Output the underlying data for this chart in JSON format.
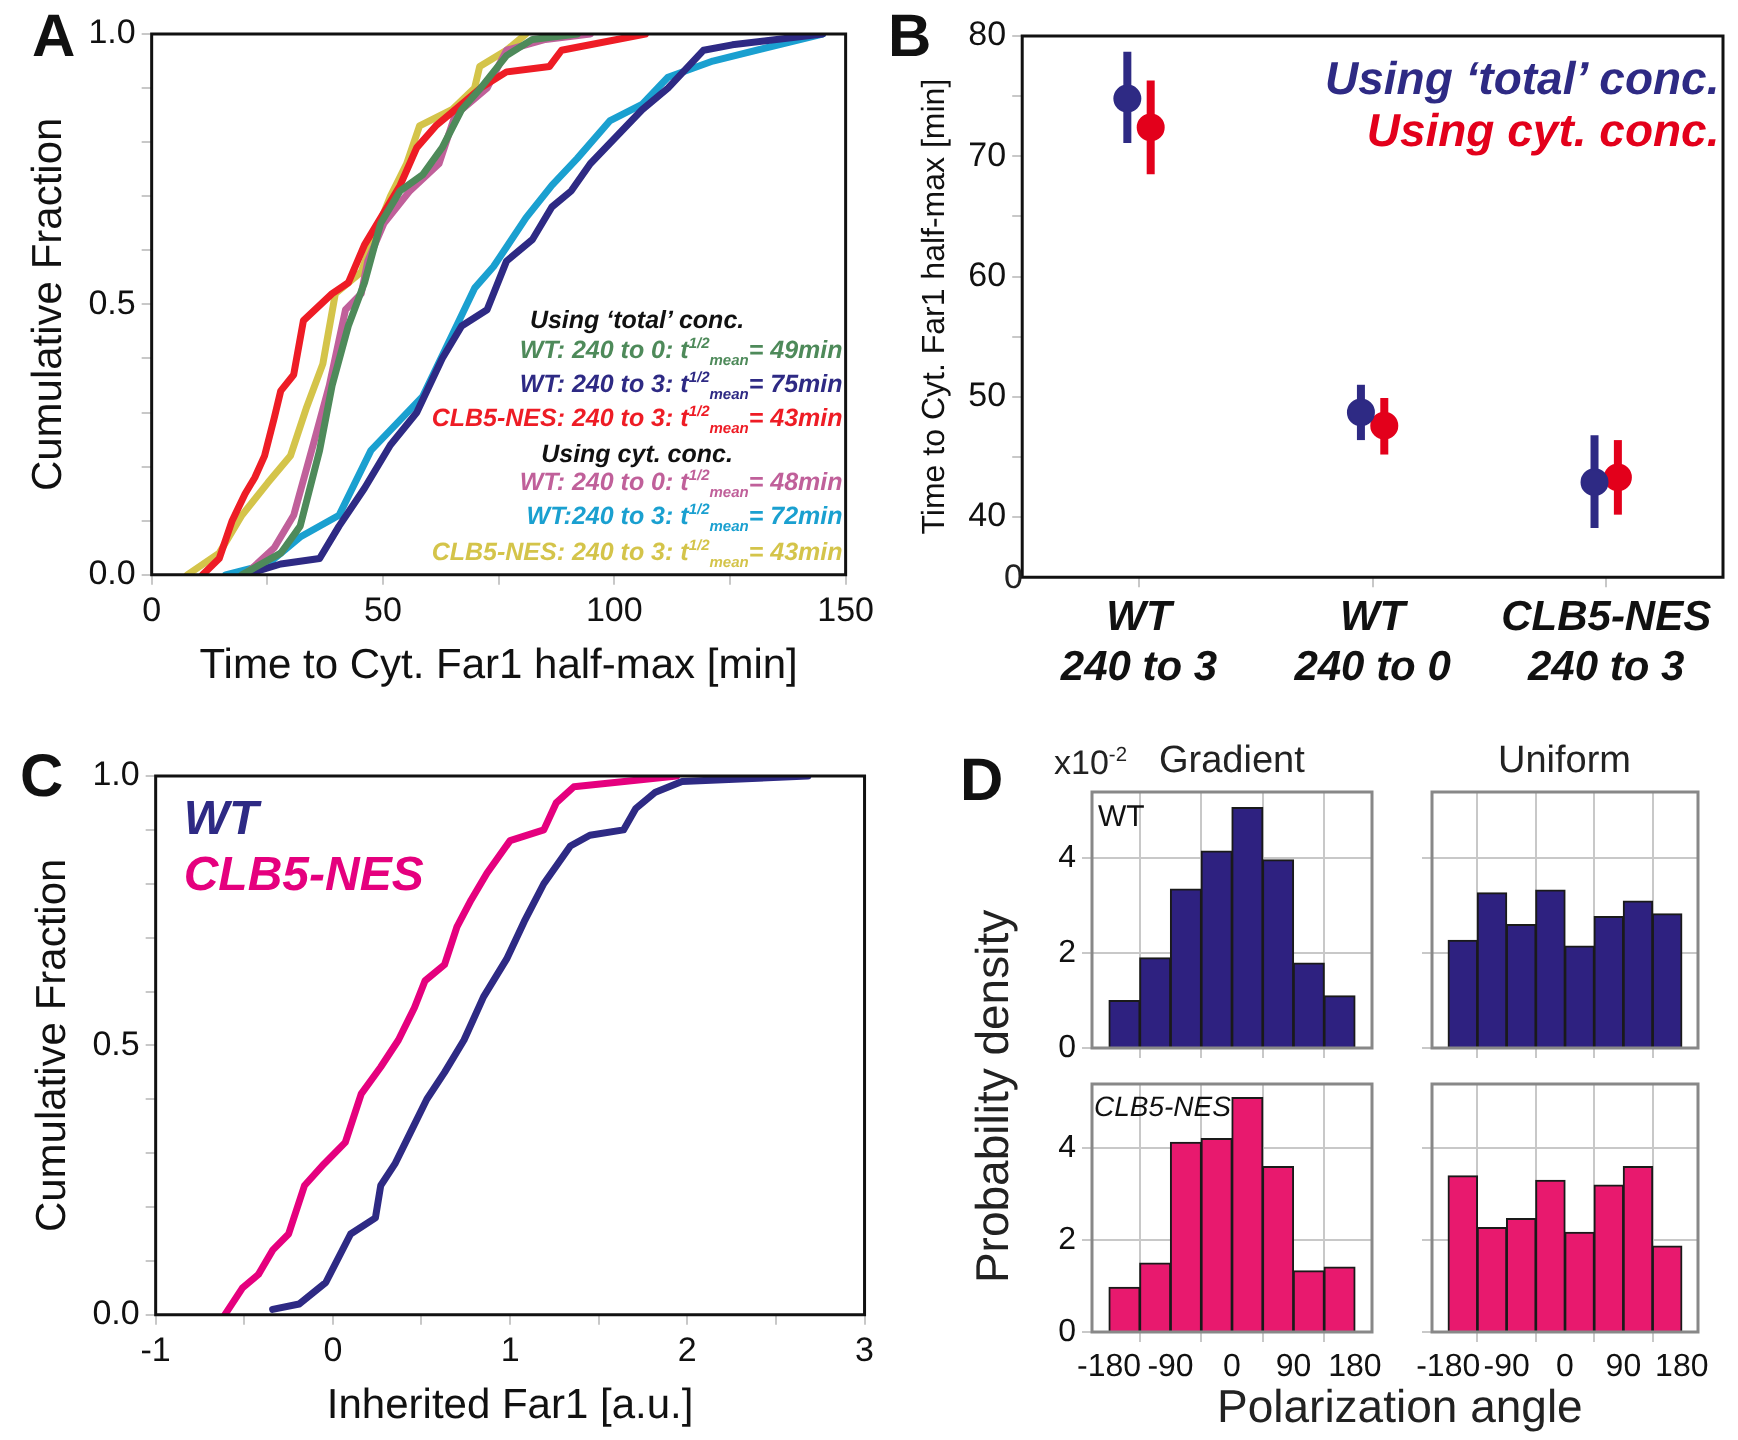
{
  "chart_data": [
    {
      "type": "line",
      "xlabel": "Time to Cyt. Far1 half-max [min]",
      "ylabel": "Cumulative Fraction",
      "annotations": [
        "A",
        "Using ‘total’ conc.",
        "Using cyt. conc."
      ],
      "xlim": [
        0,
        150
      ],
      "ylim": [
        0,
        1
      ],
      "xticks": [
        0,
        {
          "value": 25,
          "label": null
        },
        50,
        {
          "value": 75,
          "label": null
        },
        100,
        {
          "value": 125,
          "label": null
        },
        150
      ],
      "yticks": [
        {
          "value": 0,
          "label": "0.0"
        },
        {
          "value": 0.1,
          "label": null
        },
        {
          "value": 0.2,
          "label": null
        },
        {
          "value": 0.3,
          "label": null
        },
        {
          "value": 0.4,
          "label": null
        },
        {
          "value": 0.5,
          "label": "0.5"
        },
        {
          "value": 0.6,
          "label": null
        },
        {
          "value": 0.7,
          "label": null
        },
        {
          "value": 0.8,
          "label": null
        },
        {
          "value": 0.9,
          "label": null
        },
        {
          "value": 1,
          "label": "1.0"
        }
      ],
      "legend": "bottom right",
      "marker": "none",
      "line_style": "solid",
      "series": [
        {
          "name": "WT: 240 to 0: t$^{1/2}$$_{mean}$= 49min",
          "color": "#4e8a5a",
          "x": [
            19.5,
            27.9,
            32.1,
            36.3,
            39,
            42.5,
            46,
            49.5,
            53.7,
            58.6,
            62.8,
            67,
            71.1,
            76.7,
            82.3,
            92
          ],
          "values": [
            0,
            0.04,
            0.09,
            0.23,
            0.35,
            0.46,
            0.54,
            0.65,
            0.71,
            0.74,
            0.79,
            0.86,
            0.9,
            0.96,
            0.99,
            1
          ]
        },
        {
          "name": "WT: 240 to 3: t$^{1/2}$$_{mean}$= 75min",
          "color": "#2e2a84",
          "x": [
            20.2,
            27.9,
            36.3,
            40.5,
            46,
            51.6,
            57.3,
            62.8,
            67,
            72.5,
            76.7,
            82.3,
            86.5,
            90.7,
            94.8,
            100.4,
            106,
            111.6,
            119.3,
            125.5,
            145
          ],
          "values": [
            0,
            0.02,
            0.03,
            0.09,
            0.16,
            0.24,
            0.3,
            0.4,
            0.46,
            0.49,
            0.58,
            0.62,
            0.68,
            0.71,
            0.76,
            0.81,
            0.86,
            0.9,
            0.97,
            0.98,
            1
          ]
        },
        {
          "name": "CLB5-NES: 240 to 3: t$^{1/2}$$_{mean}$= 43min",
          "color": "#ee1c25",
          "x": [
            11,
            14.6,
            17.4,
            20.2,
            22.3,
            24.4,
            26.5,
            27.9,
            30.7,
            32.8,
            39,
            42.5,
            46,
            50.2,
            53.7,
            57.3,
            61.4,
            67,
            71.1,
            76.7,
            86,
            88.6,
            106.7
          ],
          "values": [
            0,
            0.03,
            0.1,
            0.15,
            0.18,
            0.22,
            0.29,
            0.34,
            0.37,
            0.47,
            0.52,
            0.54,
            0.61,
            0.67,
            0.72,
            0.79,
            0.83,
            0.87,
            0.9,
            0.93,
            0.94,
            0.97,
            1
          ]
        },
        {
          "name": "WT: 240 to 0: t$^{1/2}$$_{mean}$= 48min",
          "color": "#c0609a",
          "x": [
            20.2,
            26.5,
            30.7,
            34.9,
            38.4,
            41.9,
            45.3,
            46.7,
            50.2,
            55.8,
            62.1,
            65.6,
            72.5,
            76.7,
            85.1,
            94.8
          ],
          "values": [
            0,
            0.05,
            0.11,
            0.24,
            0.35,
            0.49,
            0.52,
            0.58,
            0.65,
            0.71,
            0.76,
            0.85,
            0.9,
            0.97,
            0.99,
            1
          ]
        },
        {
          "name": "WT:240 to 3: t$^{1/2}$$_{mean}$= 72min",
          "color": "#1aa0d0",
          "x": [
            16,
            25.1,
            32.1,
            40.5,
            47.4,
            53,
            58.6,
            64.2,
            69.8,
            73.9,
            80.9,
            86.5,
            92,
            99.1,
            106,
            111.6,
            121.3,
            145
          ],
          "values": [
            0,
            0.02,
            0.07,
            0.11,
            0.23,
            0.28,
            0.33,
            0.43,
            0.53,
            0.57,
            0.66,
            0.72,
            0.77,
            0.84,
            0.87,
            0.92,
            0.95,
            1
          ]
        },
        {
          "name": "CLB5-NES: 240 to 3: t$^{1/2}$$_{mean}$= 43min",
          "color": "#d4c44a",
          "x": [
            7.7,
            14.6,
            19.5,
            25.1,
            30,
            33.5,
            37,
            39.7,
            45.3,
            47.4,
            51.6,
            55.1,
            57.9,
            64.9,
            69.8,
            70.9,
            76.7,
            80.9
          ],
          "values": [
            0,
            0.04,
            0.11,
            0.17,
            0.22,
            0.31,
            0.39,
            0.52,
            0.56,
            0.61,
            0.7,
            0.76,
            0.83,
            0.86,
            0.9,
            0.94,
            0.97,
            1
          ]
        }
      ]
    },
    {
      "type": "scatter",
      "ylabel": "Time to Cyt. Far1 half-max [min]",
      "annotations": [
        "B",
        "0"
      ],
      "categories": [
        "WT\n240 to 3",
        "WT\n240 to 0",
        "CLB5-NES\n240 to 3"
      ],
      "ylim": [
        35,
        80
      ],
      "yticks": [
        40,
        {
          "value": 45,
          "label": null
        },
        50,
        {
          "value": 55,
          "label": null
        },
        60,
        {
          "value": 65,
          "label": null
        },
        70,
        {
          "value": 75,
          "label": null
        },
        80
      ],
      "legend": "top right",
      "marker": "circle",
      "series": [
        {
          "name": "Using ‘total’ conc.",
          "color": "#2e2a84",
          "values": [
            74.8,
            48.7,
            42.9
          ],
          "errors": [
            [
              71.1,
              78.7
            ],
            [
              46.4,
              51.0
            ],
            [
              39.1,
              46.8
            ]
          ]
        },
        {
          "name": "Using cyt. conc.",
          "color": "#e3001b",
          "values": [
            72.4,
            47.6,
            43.3
          ],
          "errors": [
            [
              68.5,
              76.3
            ],
            [
              45.2,
              49.9
            ],
            [
              40.2,
              46.4
            ]
          ]
        }
      ]
    },
    {
      "type": "line",
      "xlabel": "Inherited Far1 [a.u.]",
      "ylabel": "Cumulative Fraction",
      "annotations": [
        "C"
      ],
      "xlim": [
        -1,
        3
      ],
      "ylim": [
        0,
        1
      ],
      "xticks": [
        -1,
        {
          "value": -0.5,
          "label": null
        },
        0,
        {
          "value": 0.5,
          "label": null
        },
        1,
        {
          "value": 1.5,
          "label": null
        },
        2,
        {
          "value": 2.5,
          "label": null
        },
        3
      ],
      "yticks": [
        {
          "value": 0,
          "label": "0.0"
        },
        {
          "value": 0.1,
          "label": null
        },
        {
          "value": 0.2,
          "label": null
        },
        {
          "value": 0.3,
          "label": null
        },
        {
          "value": 0.4,
          "label": null
        },
        {
          "value": 0.5,
          "label": "0.5"
        },
        {
          "value": 0.6,
          "label": null
        },
        {
          "value": 0.7,
          "label": null
        },
        {
          "value": 0.8,
          "label": null
        },
        {
          "value": 0.9,
          "label": null
        },
        {
          "value": 1,
          "label": "1.0"
        }
      ],
      "legend": "top left",
      "marker": "none",
      "line_style": "solid",
      "series": [
        {
          "name": "WT",
          "color": "#2e2a84",
          "x": [
            -0.34,
            -0.19,
            -0.04,
            0.1,
            0.24,
            0.27,
            0.35,
            0.44,
            0.53,
            0.63,
            0.74,
            0.85,
            0.98,
            1.08,
            1.19,
            1.34,
            1.45,
            1.64,
            1.71,
            1.82,
            1.97,
            2.68
          ],
          "values": [
            0.01,
            0.02,
            0.06,
            0.15,
            0.18,
            0.24,
            0.28,
            0.34,
            0.4,
            0.45,
            0.51,
            0.59,
            0.66,
            0.73,
            0.8,
            0.87,
            0.89,
            0.9,
            0.94,
            0.97,
            0.99,
            1
          ]
        },
        {
          "name": "CLB5-NES",
          "color": "#e5007e",
          "x": [
            -0.61,
            -0.51,
            -0.42,
            -0.34,
            -0.25,
            -0.16,
            -0.05,
            0.07,
            0.16,
            0.27,
            0.37,
            0.46,
            0.52,
            0.63,
            0.7,
            0.78,
            0.87,
            1.0,
            1.19,
            1.26,
            1.36,
            1.94
          ],
          "values": [
            0,
            0.05,
            0.075,
            0.12,
            0.15,
            0.24,
            0.28,
            0.32,
            0.41,
            0.46,
            0.51,
            0.57,
            0.62,
            0.65,
            0.72,
            0.77,
            0.82,
            0.88,
            0.9,
            0.95,
            0.98,
            1
          ]
        }
      ]
    },
    {
      "type": "histogram",
      "title": "Gradient",
      "ylabel": "Probability density",
      "annotations": [
        "D",
        "x10$^{-2}$",
        "WT"
      ],
      "bins": [
        -180,
        -135,
        -90,
        -45,
        0,
        45,
        90,
        135,
        180
      ],
      "values": [
        1.0,
        1.9,
        3.35,
        4.15,
        5.07,
        3.97,
        1.79,
        1.1
      ],
      "color": "#2e2180",
      "xlim": [
        -205,
        205
      ],
      "ylim": [
        0,
        5.4
      ],
      "xticks": [
        -180,
        -90,
        0,
        90,
        180
      ],
      "yticks": [
        0,
        2,
        4
      ],
      "grid": true,
      "tick_labels": "y"
    },
    {
      "type": "histogram",
      "title": "Uniform",
      "bins": [
        -180,
        -135,
        -90,
        -45,
        0,
        45,
        90,
        135,
        180
      ],
      "values": [
        2.27,
        3.27,
        2.6,
        3.33,
        2.15,
        2.77,
        3.1,
        2.83
      ],
      "color": "#2e2180",
      "xlim": [
        -205,
        205
      ],
      "ylim": [
        0,
        5.4
      ],
      "xticks": [
        -180,
        -90,
        0,
        90,
        180
      ],
      "yticks": [
        0,
        2,
        4
      ],
      "grid": true,
      "tick_labels": false
    },
    {
      "type": "histogram",
      "xlabel": "Polarization angle",
      "annotations": [
        "CLB5-NES"
      ],
      "bins": [
        -180,
        -135,
        -90,
        -45,
        0,
        45,
        90,
        135,
        180
      ],
      "values": [
        0.97,
        1.5,
        4.13,
        4.21,
        5.1,
        3.6,
        1.33,
        1.41
      ],
      "color": "#e8196e",
      "xlim": [
        -205,
        205
      ],
      "ylim": [
        0,
        5.4
      ],
      "xticks": [
        -180,
        -90,
        0,
        90,
        180
      ],
      "yticks": [
        0,
        2,
        4
      ],
      "grid": true
    },
    {
      "type": "histogram",
      "bins": [
        -180,
        -135,
        -90,
        -45,
        0,
        45,
        90,
        135,
        180
      ],
      "values": [
        3.4,
        2.27,
        2.47,
        3.3,
        2.17,
        3.2,
        3.6,
        1.87
      ],
      "color": "#e8196e",
      "xlim": [
        -205,
        205
      ],
      "ylim": [
        0,
        5.4
      ],
      "xticks": [
        -180,
        -90,
        0,
        90,
        180
      ],
      "yticks": [
        0,
        2,
        4
      ],
      "grid": true,
      "tick_labels": "x"
    }
  ]
}
